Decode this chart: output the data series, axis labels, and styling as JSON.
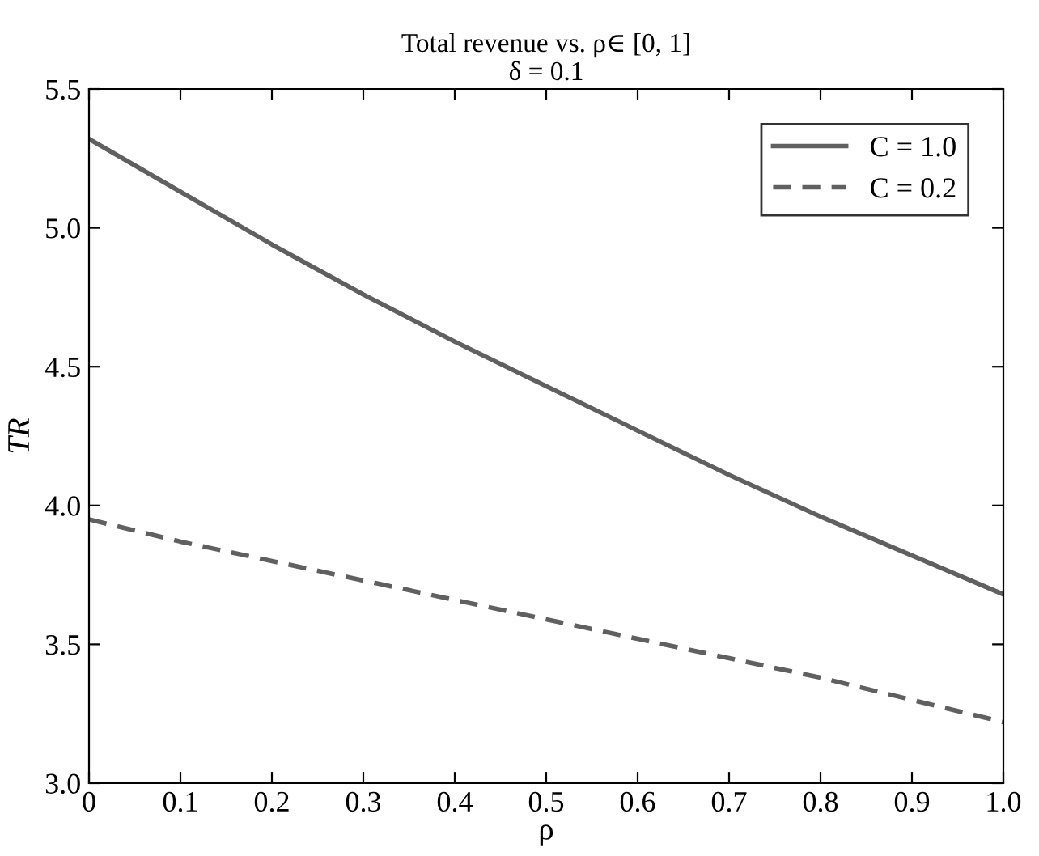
{
  "chart_data": {
    "type": "line",
    "title": "Total revenue vs. ρ∈ [0, 1]",
    "subtitle": "δ = 0.1",
    "xlabel": "ρ",
    "ylabel": "TR",
    "x": [
      0,
      0.1,
      0.2,
      0.3,
      0.4,
      0.5,
      0.6,
      0.7,
      0.8,
      0.9,
      1.0
    ],
    "series": [
      {
        "name": "C = 1.0",
        "color": "#606060",
        "line_style": "solid",
        "values": [
          5.32,
          5.13,
          4.94,
          4.76,
          4.59,
          4.43,
          4.27,
          4.11,
          3.96,
          3.82,
          3.68
        ]
      },
      {
        "name": "C = 0.2",
        "color": "#606060",
        "line_style": "dashed",
        "values": [
          3.95,
          3.87,
          3.8,
          3.73,
          3.66,
          3.59,
          3.52,
          3.45,
          3.38,
          3.3,
          3.22
        ]
      }
    ],
    "xlim": [
      0,
      1.0
    ],
    "xticks": [
      0,
      0.1,
      0.2,
      0.3,
      0.4,
      0.5,
      0.6,
      0.7,
      0.8,
      0.9,
      {
        "value": 1.0,
        "label": "1.0"
      }
    ],
    "ylim": [
      3.0,
      5.5
    ],
    "yticks": [
      {
        "value": 3.0,
        "label": "3.0"
      },
      3.5,
      {
        "value": 4.0,
        "label": "4.0"
      },
      4.5,
      {
        "value": 5.0,
        "label": "5.0"
      },
      5.5
    ],
    "grid": false,
    "legend": "top right",
    "marker": "none"
  }
}
